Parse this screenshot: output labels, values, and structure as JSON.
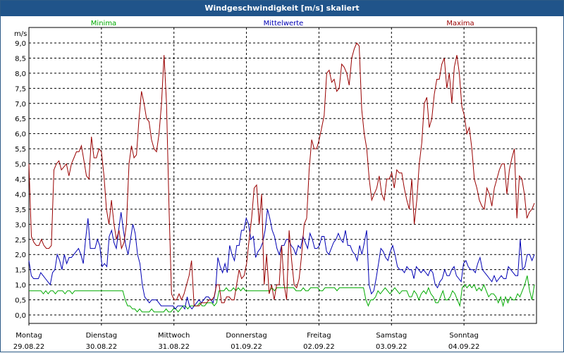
{
  "window": {
    "title": "Windgeschwindigkeit [m/s] skaliert"
  },
  "chart_data": {
    "type": "line",
    "ylabel": "m/s",
    "ylim": [
      0,
      9.0
    ],
    "yticks": [
      "0,0",
      "0,5",
      "1,0",
      "1,5",
      "2,0",
      "2,5",
      "3,0",
      "3,5",
      "4,0",
      "4,5",
      "5,0",
      "5,5",
      "6,0",
      "6,5",
      "7,0",
      "7,5",
      "8,0",
      "8,5",
      "9,0"
    ],
    "days": [
      {
        "name": "Montag",
        "date": "29.08.22"
      },
      {
        "name": "Dienstag",
        "date": "30.08.22"
      },
      {
        "name": "Mittwoch",
        "date": "31.08.22"
      },
      {
        "name": "Donnerstag",
        "date": "01.09.22"
      },
      {
        "name": "Freitag",
        "date": "02.09.22"
      },
      {
        "name": "Samstag",
        "date": "03.09.22"
      },
      {
        "name": "Sonntag",
        "date": "04.09.22"
      }
    ],
    "grid": true,
    "series": [
      {
        "name": "Minima",
        "color": "#00aa00",
        "values": [
          0.8,
          0.8,
          0.8,
          0.8,
          0.8,
          0.8,
          0.7,
          0.8,
          0.7,
          0.8,
          0.8,
          0.7,
          0.8,
          0.8,
          0.8,
          0.7,
          0.8,
          0.8,
          0.7,
          0.8,
          0.8,
          0.8,
          0.8,
          0.8,
          0.8,
          0.8,
          0.8,
          0.8,
          0.8,
          0.8,
          0.8,
          0.8,
          0.8,
          0.8,
          0.8,
          0.8,
          0.8,
          0.8,
          0.8,
          0.8,
          0.5,
          0.3,
          0.3,
          0.2,
          0.2,
          0.1,
          0.2,
          0.1,
          0.1,
          0.1,
          0.1,
          0.2,
          0.1,
          0.1,
          0.1,
          0.1,
          0.1,
          0.2,
          0.1,
          0.1,
          0.2,
          0.2,
          0.1,
          0.2,
          0.3,
          0.3,
          0.2,
          0.3,
          0.3,
          0.3,
          0.3,
          0.4,
          0.3,
          0.3,
          0.4,
          0.4,
          0.4,
          0.3,
          0.4,
          0.8,
          0.8,
          0.8,
          0.9,
          0.8,
          0.8,
          0.9,
          0.8,
          0.9,
          0.8,
          0.9,
          0.8,
          0.8,
          0.8,
          0.8,
          0.8,
          0.8,
          0.8,
          0.8,
          0.8,
          0.8,
          0.8,
          0.9,
          0.8,
          0.9,
          0.9,
          0.9,
          0.9,
          0.9,
          0.9,
          0.9,
          0.9,
          0.8,
          0.8,
          0.8,
          0.9,
          0.8,
          0.8,
          0.9,
          0.9,
          0.9,
          0.9,
          0.8,
          0.8,
          0.9,
          0.9,
          0.9,
          0.9,
          0.9,
          0.8,
          0.9,
          0.9,
          0.9,
          0.9,
          0.9,
          0.9,
          0.9,
          0.9,
          0.9,
          0.9,
          0.9,
          0.5,
          0.3,
          0.5,
          0.5,
          0.6,
          0.8,
          0.7,
          0.8,
          0.9,
          0.8,
          0.7,
          0.8,
          0.9,
          0.8,
          0.7,
          0.8,
          0.8,
          0.8,
          0.6,
          0.6,
          0.8,
          0.7,
          0.5,
          0.7,
          0.8,
          0.7,
          0.9,
          0.7,
          0.6,
          0.4,
          0.4,
          0.6,
          0.8,
          0.5,
          0.5,
          0.6,
          0.8,
          0.7,
          0.5,
          0.3,
          0.9,
          1.0,
          0.9,
          1.0,
          0.9,
          1.0,
          0.8,
          0.9,
          0.8,
          1.0,
          0.8,
          0.6,
          0.7,
          0.7,
          0.6,
          0.4,
          0.6,
          0.3,
          0.6,
          0.4,
          0.6,
          0.5,
          0.5,
          0.7,
          0.6,
          0.8,
          1.0,
          1.3,
          0.8,
          0.5,
          1.0
        ]
      },
      {
        "name": "Mittelwerte",
        "color": "#0000b4",
        "values": [
          1.8,
          1.3,
          1.2,
          1.2,
          1.2,
          1.4,
          1.3,
          1.2,
          1.1,
          1.0,
          1.4,
          1.5,
          2.0,
          1.8,
          1.5,
          2.0,
          1.7,
          1.9,
          1.9,
          2.0,
          2.1,
          2.2,
          2.0,
          1.7,
          2.5,
          3.2,
          2.2,
          2.2,
          2.2,
          2.5,
          2.3,
          1.6,
          1.7,
          1.6,
          2.6,
          2.8,
          2.4,
          2.2,
          2.8,
          3.4,
          2.8,
          2.3,
          2.0,
          2.5,
          3.0,
          2.7,
          2.0,
          1.7,
          1.0,
          0.6,
          0.5,
          0.4,
          0.5,
          0.5,
          0.5,
          0.4,
          0.3,
          0.3,
          0.3,
          0.3,
          0.3,
          0.3,
          0.2,
          0.3,
          0.3,
          0.3,
          0.2,
          0.6,
          0.3,
          0.2,
          0.3,
          0.4,
          0.5,
          0.4,
          0.5,
          0.6,
          0.6,
          0.5,
          0.4,
          0.8,
          1.9,
          1.6,
          1.4,
          1.7,
          1.4,
          2.3,
          2.0,
          1.8,
          2.3,
          2.3,
          2.8,
          2.8,
          3.2,
          3.0,
          2.5,
          2.6,
          1.9,
          2.1,
          2.2,
          2.4,
          2.8,
          3.5,
          3.2,
          2.8,
          2.6,
          2.2,
          2.0,
          2.3,
          2.3,
          2.5,
          2.5,
          2.3,
          2.2,
          2.0,
          2.3,
          2.2,
          2.6,
          2.4,
          2.2,
          2.7,
          2.5,
          2.2,
          2.2,
          2.3,
          2.6,
          2.6,
          2.1,
          2.0,
          2.2,
          2.4,
          2.5,
          2.7,
          2.5,
          2.4,
          2.8,
          2.3,
          2.3,
          2.1,
          2.0,
          1.8,
          2.3,
          2.0,
          2.4,
          2.8,
          1.0,
          0.7,
          0.8,
          1.2,
          1.7,
          2.2,
          2.1,
          1.9,
          1.8,
          2.1,
          2.3,
          2.0,
          1.6,
          1.5,
          1.5,
          1.4,
          1.6,
          1.5,
          1.5,
          1.2,
          1.6,
          1.5,
          1.4,
          1.5,
          1.4,
          1.3,
          1.5,
          1.4,
          1.0,
          0.9,
          1.1,
          1.2,
          1.5,
          1.3,
          1.3,
          1.5,
          1.6,
          1.3,
          1.2,
          1.1,
          1.7,
          1.8,
          1.6,
          1.5,
          1.5,
          1.4,
          1.7,
          1.9,
          1.5,
          1.4,
          1.3,
          1.2,
          1.1,
          1.3,
          1.1,
          1.2,
          1.3,
          1.2,
          1.2,
          1.6,
          1.5,
          1.4,
          1.3,
          1.3,
          2.5,
          1.5,
          1.6,
          2.0,
          2.0,
          1.8,
          2.0
        ]
      },
      {
        "name": "Maxima",
        "color": "#990000",
        "values": [
          5.0,
          2.6,
          2.4,
          2.3,
          2.3,
          2.5,
          2.3,
          2.2,
          2.2,
          2.3,
          4.8,
          5.0,
          5.1,
          4.8,
          4.9,
          5.0,
          4.6,
          5.0,
          5.2,
          5.4,
          5.4,
          5.6,
          5.1,
          4.6,
          4.5,
          5.9,
          5.2,
          5.2,
          5.5,
          5.4,
          4.6,
          3.5,
          3.0,
          3.8,
          3.0,
          2.5,
          2.8,
          2.2,
          2.4,
          3.0,
          5.0,
          5.6,
          5.2,
          5.3,
          6.5,
          7.4,
          7.0,
          6.5,
          6.4,
          5.8,
          5.5,
          5.4,
          6.0,
          7.0,
          8.6,
          7.0,
          3.5,
          0.7,
          0.5,
          0.5,
          0.7,
          0.5,
          0.7,
          1.0,
          1.3,
          1.8,
          0.3,
          0.3,
          0.3,
          0.4,
          0.4,
          0.4,
          0.5,
          0.5,
          0.6,
          1.0,
          1.0,
          0.4,
          0.4,
          0.6,
          0.6,
          0.5,
          0.5,
          1.0,
          1.5,
          1.2,
          1.3,
          1.7,
          2.5,
          3.2,
          4.2,
          4.3,
          3.0,
          4.0,
          1.0,
          2.0,
          0.7,
          1.0,
          0.5,
          1.0,
          1.0,
          2.3,
          1.0,
          0.5,
          2.8,
          1.8,
          1.0,
          0.9,
          1.2,
          2.0,
          3.0,
          3.2,
          4.8,
          5.8,
          5.5,
          5.5,
          5.8,
          6.2,
          6.6,
          8.0,
          8.1,
          7.7,
          7.8,
          7.4,
          7.5,
          8.3,
          8.2,
          8.0,
          7.6,
          8.5,
          8.8,
          9.0,
          8.9,
          6.8,
          6.0,
          5.5,
          4.5,
          3.8,
          4.0,
          4.2,
          4.6,
          4.0,
          3.8,
          4.5,
          4.5,
          4.7,
          4.2,
          4.8,
          4.7,
          4.7,
          4.2,
          3.8,
          3.5,
          4.5,
          3.0,
          3.8,
          5.0,
          5.7,
          7.0,
          7.2,
          6.2,
          6.5,
          7.3,
          7.8,
          7.8,
          8.3,
          8.5,
          7.5,
          8.0,
          7.0,
          8.2,
          8.6,
          8.0,
          6.9,
          6.6,
          6.0,
          6.2,
          5.5,
          4.5,
          4.2,
          3.8,
          3.6,
          3.5,
          4.2,
          4.0,
          3.6,
          4.2,
          4.5,
          4.8,
          5.0,
          5.0,
          4.0,
          4.8,
          5.2,
          5.5,
          3.2,
          4.6,
          4.5,
          4.0,
          3.2,
          3.4,
          3.5,
          3.7
        ]
      }
    ]
  }
}
